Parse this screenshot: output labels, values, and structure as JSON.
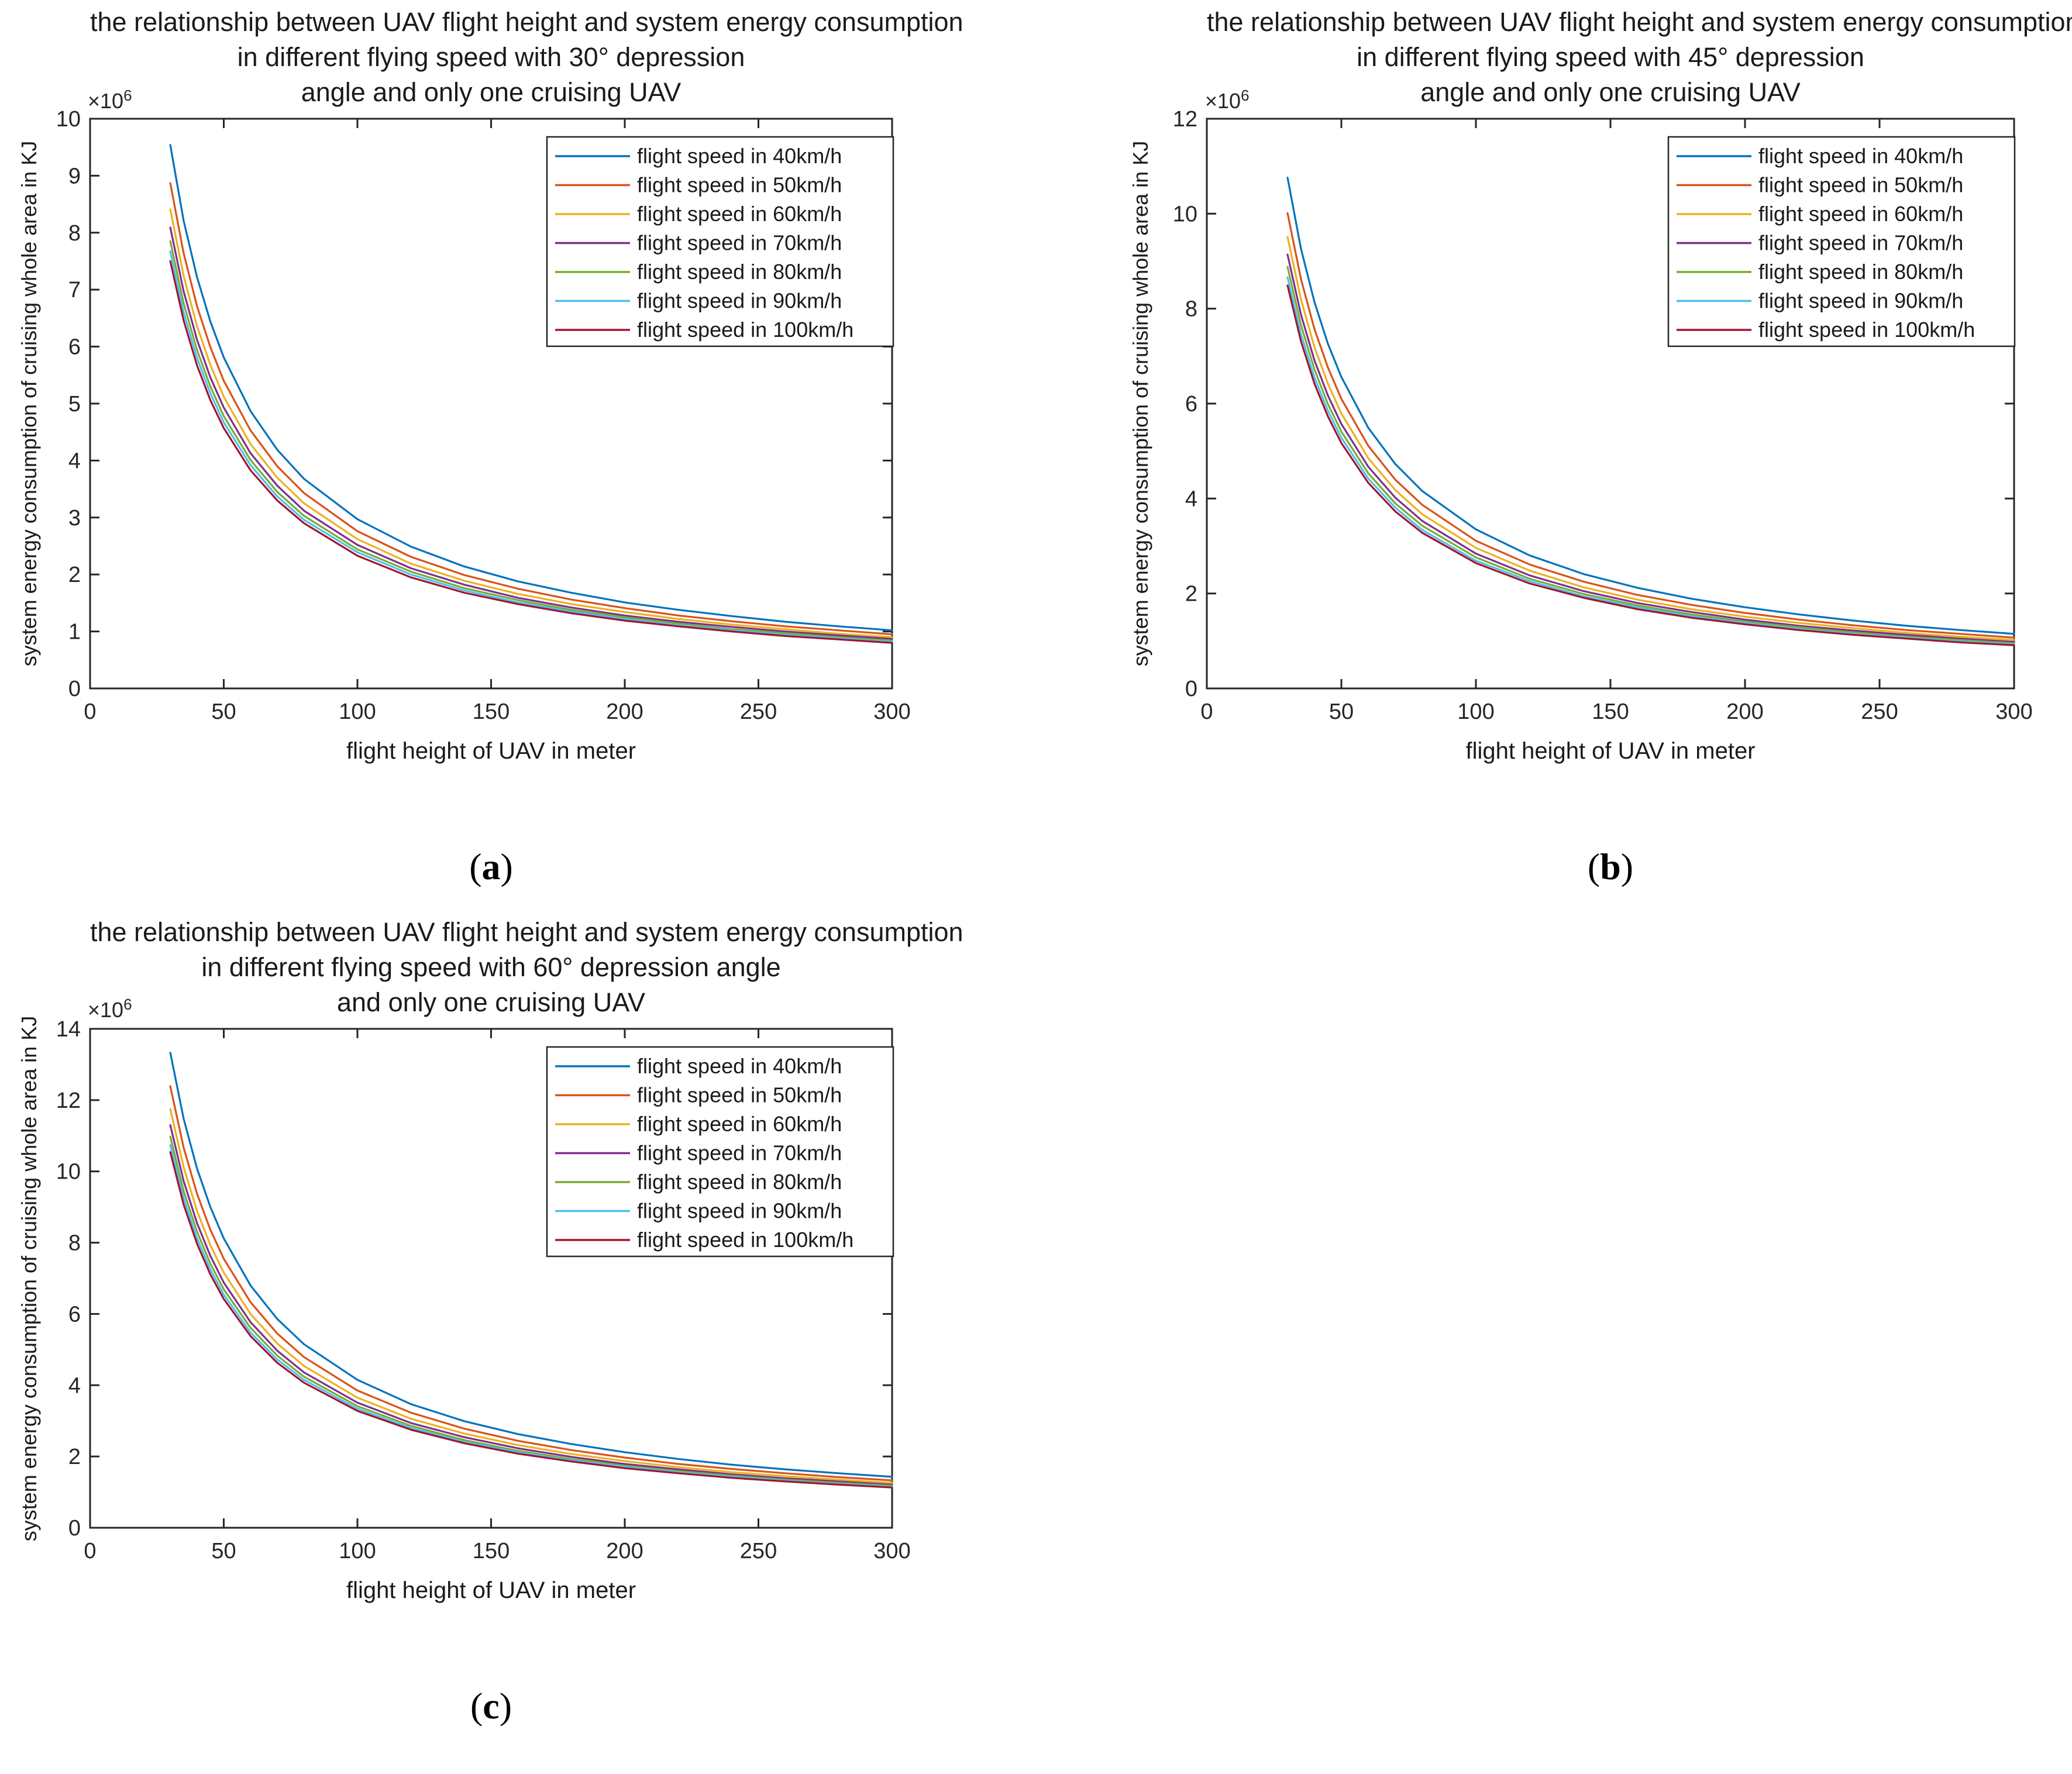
{
  "figure": {
    "background": "#ffffff",
    "text_color": "#1a1a1a",
    "axis_color": "#262626"
  },
  "chart_data": [
    {
      "id": "a",
      "type": "line",
      "title_lines": [
        "the relationship between UAV flight height and system energy consumption",
        "in different flying speed with 30° depression",
        "angle and only one cruising UAV"
      ],
      "xlabel": "flight height of UAV in meter",
      "ylabel": "system energy consumption of cruising whole area in KJ",
      "y_exponent": {
        "base": "×10",
        "sup": "6"
      },
      "sublabel": {
        "open": "(",
        "letter": "a",
        "close": ")"
      },
      "units": "×10^6 KJ",
      "xlim": [
        0,
        300
      ],
      "ylim": [
        0,
        10
      ],
      "xticks": [
        0,
        50,
        100,
        150,
        200,
        250,
        300
      ],
      "yticks": [
        0,
        1,
        2,
        3,
        4,
        5,
        6,
        7,
        8,
        9,
        10
      ],
      "legend_position": "northeast",
      "grid": false,
      "x_values": [
        30,
        35,
        40,
        45,
        50,
        60,
        70,
        80,
        100,
        120,
        140,
        160,
        180,
        200,
        220,
        240,
        260,
        280,
        300
      ],
      "series": [
        {
          "label": "flight speed in 40km/h",
          "color": "#0072BD",
          "values": [
            9.54,
            8.21,
            7.22,
            6.44,
            5.81,
            4.87,
            4.19,
            3.68,
            2.97,
            2.49,
            2.14,
            1.88,
            1.68,
            1.51,
            1.38,
            1.27,
            1.17,
            1.09,
            1.02
          ]
        },
        {
          "label": "flight speed in 50km/h",
          "color": "#D95319",
          "values": [
            8.87,
            7.64,
            6.71,
            5.99,
            5.4,
            4.53,
            3.9,
            3.43,
            2.76,
            2.31,
            1.99,
            1.75,
            1.56,
            1.41,
            1.28,
            1.18,
            1.09,
            1.02,
            0.95
          ]
        },
        {
          "label": "flight speed in 60km/h",
          "color": "#EDB120",
          "values": [
            8.41,
            7.24,
            6.36,
            5.68,
            5.12,
            4.29,
            3.7,
            3.25,
            2.62,
            2.19,
            1.89,
            1.66,
            1.48,
            1.34,
            1.22,
            1.12,
            1.04,
            0.96,
            0.9
          ]
        },
        {
          "label": "flight speed in 70km/h",
          "color": "#7E2F8E",
          "values": [
            8.09,
            6.97,
            6.12,
            5.46,
            4.93,
            4.13,
            3.56,
            3.12,
            2.52,
            2.11,
            1.82,
            1.59,
            1.42,
            1.28,
            1.17,
            1.08,
            1.0,
            0.93,
            0.87
          ]
        },
        {
          "label": "flight speed in 80km/h",
          "color": "#77AC30",
          "values": [
            7.85,
            6.76,
            5.94,
            5.3,
            4.78,
            4.01,
            3.45,
            3.03,
            2.44,
            2.05,
            1.76,
            1.55,
            1.38,
            1.25,
            1.14,
            1.04,
            0.97,
            0.9,
            0.84
          ]
        },
        {
          "label": "flight speed in 90km/h",
          "color": "#4DBEEE",
          "values": [
            7.67,
            6.6,
            5.8,
            5.18,
            4.67,
            3.92,
            3.37,
            2.96,
            2.39,
            2.0,
            1.72,
            1.51,
            1.35,
            1.22,
            1.11,
            1.02,
            0.94,
            0.88,
            0.82
          ]
        },
        {
          "label": "flight speed in 100km/h",
          "color": "#A2142F",
          "values": [
            7.5,
            6.46,
            5.67,
            5.06,
            4.57,
            3.83,
            3.3,
            2.9,
            2.33,
            1.95,
            1.68,
            1.48,
            1.32,
            1.19,
            1.09,
            1.0,
            0.92,
            0.86,
            0.8
          ]
        }
      ]
    },
    {
      "id": "b",
      "type": "line",
      "title_lines": [
        "the relationship between UAV flight height and system energy consumption",
        "in different flying speed with 45° depression",
        "angle and only one cruising UAV"
      ],
      "xlabel": "flight height of UAV in meter",
      "ylabel": "system energy consumption of cruising whole area in KJ",
      "y_exponent": {
        "base": "×10",
        "sup": "6"
      },
      "sublabel": {
        "open": "(",
        "letter": "b",
        "close": ")"
      },
      "units": "×10^6 KJ",
      "xlim": [
        0,
        300
      ],
      "ylim": [
        0,
        12
      ],
      "xticks": [
        0,
        50,
        100,
        150,
        200,
        250,
        300
      ],
      "yticks": [
        0,
        2,
        4,
        6,
        8,
        10,
        12
      ],
      "legend_position": "northeast",
      "grid": false,
      "x_values": [
        30,
        35,
        40,
        45,
        50,
        60,
        70,
        80,
        100,
        120,
        140,
        160,
        180,
        200,
        220,
        240,
        260,
        280,
        300
      ],
      "series": [
        {
          "label": "flight speed in 40km/h",
          "color": "#0072BD",
          "values": [
            10.76,
            9.26,
            8.14,
            7.26,
            6.56,
            5.49,
            4.73,
            4.16,
            3.35,
            2.8,
            2.41,
            2.12,
            1.89,
            1.71,
            1.56,
            1.43,
            1.32,
            1.23,
            1.15
          ]
        },
        {
          "label": "flight speed in 50km/h",
          "color": "#D95319",
          "values": [
            10.01,
            8.62,
            7.57,
            6.76,
            6.1,
            5.11,
            4.4,
            3.87,
            3.11,
            2.61,
            2.25,
            1.97,
            1.76,
            1.59,
            1.45,
            1.33,
            1.23,
            1.15,
            1.07
          ]
        },
        {
          "label": "flight speed in 60km/h",
          "color": "#EDB120",
          "values": [
            9.51,
            8.19,
            7.19,
            6.42,
            5.79,
            4.85,
            4.18,
            3.67,
            2.96,
            2.48,
            2.13,
            1.87,
            1.67,
            1.51,
            1.38,
            1.27,
            1.17,
            1.09,
            1.02
          ]
        },
        {
          "label": "flight speed in 70km/h",
          "color": "#7E2F8E",
          "values": [
            9.14,
            7.87,
            6.91,
            6.17,
            5.57,
            4.67,
            4.02,
            3.53,
            2.84,
            2.38,
            2.05,
            1.8,
            1.61,
            1.45,
            1.32,
            1.22,
            1.13,
            1.05,
            0.98
          ]
        },
        {
          "label": "flight speed in 80km/h",
          "color": "#77AC30",
          "values": [
            8.88,
            7.65,
            6.72,
            5.99,
            5.41,
            4.53,
            3.9,
            3.43,
            2.76,
            2.31,
            1.99,
            1.75,
            1.56,
            1.41,
            1.29,
            1.18,
            1.09,
            1.02,
            0.95
          ]
        },
        {
          "label": "flight speed in 90km/h",
          "color": "#4DBEEE",
          "values": [
            8.66,
            7.46,
            6.55,
            5.85,
            5.28,
            4.42,
            3.81,
            3.34,
            2.69,
            2.26,
            1.94,
            1.71,
            1.52,
            1.38,
            1.25,
            1.15,
            1.07,
            0.99,
            0.93
          ]
        },
        {
          "label": "flight speed in 100km/h",
          "color": "#A2142F",
          "values": [
            8.49,
            7.31,
            6.42,
            5.73,
            5.17,
            4.33,
            3.73,
            3.28,
            2.64,
            2.21,
            1.91,
            1.67,
            1.49,
            1.35,
            1.23,
            1.13,
            1.05,
            0.97,
            0.91
          ]
        }
      ]
    },
    {
      "id": "c",
      "type": "line",
      "title_lines": [
        "the relationship between UAV flight height and system energy consumption",
        "in different flying speed with 60° depression angle",
        "and only one cruising UAV"
      ],
      "xlabel": "flight height of UAV in meter",
      "ylabel": "system energy consumption of cruising whole area in KJ",
      "y_exponent": {
        "base": "×10",
        "sup": "6"
      },
      "sublabel": {
        "open": "(",
        "letter": "c",
        "close": ")"
      },
      "units": "×10^6 KJ",
      "xlim": [
        0,
        300
      ],
      "ylim": [
        0,
        14
      ],
      "xticks": [
        0,
        50,
        100,
        150,
        200,
        250,
        300
      ],
      "yticks": [
        0,
        2,
        4,
        6,
        8,
        10,
        12,
        14
      ],
      "legend_position": "northeast",
      "grid": false,
      "x_values": [
        30,
        35,
        40,
        45,
        50,
        60,
        70,
        80,
        100,
        120,
        140,
        160,
        180,
        200,
        220,
        240,
        260,
        280,
        300
      ],
      "series": [
        {
          "label": "flight speed in 40km/h",
          "color": "#0072BD",
          "values": [
            13.33,
            11.48,
            10.08,
            9.0,
            8.12,
            6.8,
            5.86,
            5.15,
            4.15,
            3.47,
            2.99,
            2.63,
            2.35,
            2.12,
            1.93,
            1.77,
            1.64,
            1.53,
            1.43
          ]
        },
        {
          "label": "flight speed in 50km/h",
          "color": "#D95319",
          "values": [
            12.39,
            10.67,
            9.37,
            8.36,
            7.55,
            6.33,
            5.45,
            4.79,
            3.85,
            3.23,
            2.78,
            2.44,
            2.18,
            1.97,
            1.79,
            1.65,
            1.53,
            1.42,
            1.33
          ]
        },
        {
          "label": "flight speed in 60km/h",
          "color": "#EDB120",
          "values": [
            11.75,
            10.12,
            8.89,
            7.93,
            7.16,
            6.0,
            5.17,
            4.54,
            3.65,
            3.06,
            2.64,
            2.32,
            2.07,
            1.87,
            1.7,
            1.56,
            1.45,
            1.35,
            1.26
          ]
        },
        {
          "label": "flight speed in 70km/h",
          "color": "#7E2F8E",
          "values": [
            11.3,
            9.73,
            8.55,
            7.63,
            6.88,
            5.77,
            4.97,
            4.36,
            3.51,
            2.94,
            2.54,
            2.23,
            1.99,
            1.79,
            1.64,
            1.5,
            1.39,
            1.3,
            1.21
          ]
        },
        {
          "label": "flight speed in 80km/h",
          "color": "#77AC30",
          "values": [
            10.98,
            9.45,
            8.31,
            7.41,
            6.69,
            5.61,
            4.83,
            4.24,
            3.41,
            2.86,
            2.46,
            2.16,
            1.93,
            1.74,
            1.59,
            1.46,
            1.35,
            1.26,
            1.18
          ]
        },
        {
          "label": "flight speed in 90km/h",
          "color": "#4DBEEE",
          "values": [
            10.74,
            9.25,
            8.12,
            7.25,
            6.54,
            5.48,
            4.72,
            4.15,
            3.34,
            2.8,
            2.41,
            2.12,
            1.89,
            1.71,
            1.56,
            1.43,
            1.32,
            1.23,
            1.15
          ]
        },
        {
          "label": "flight speed in 100km/h",
          "color": "#A2142F",
          "values": [
            10.54,
            9.07,
            7.97,
            7.11,
            6.42,
            5.38,
            4.63,
            4.07,
            3.28,
            2.75,
            2.37,
            2.08,
            1.86,
            1.67,
            1.53,
            1.4,
            1.3,
            1.21,
            1.13
          ]
        }
      ]
    }
  ]
}
